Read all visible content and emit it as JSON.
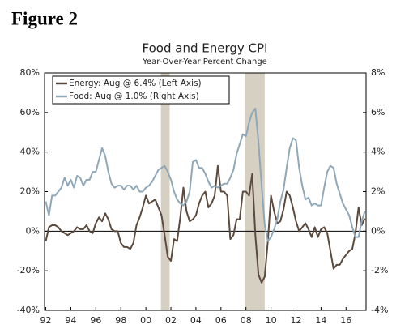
{
  "figure_label": "Figure 2",
  "chart_data": {
    "type": "line",
    "title": "Food and Energy CPI",
    "subtitle": "Year-Over-Year Percent Change",
    "xlim": [
      1991.9,
      2017.6
    ],
    "xticks": [
      {
        "value": 1992,
        "label": "92"
      },
      {
        "value": 1994,
        "label": "94"
      },
      {
        "value": 1996,
        "label": "96"
      },
      {
        "value": 1998,
        "label": "98"
      },
      {
        "value": 2000,
        "label": "00"
      },
      {
        "value": 2002,
        "label": "02"
      },
      {
        "value": 2004,
        "label": "04"
      },
      {
        "value": 2006,
        "label": "06"
      },
      {
        "value": 2008,
        "label": "08"
      },
      {
        "value": 2010,
        "label": "10"
      },
      {
        "value": 2012,
        "label": "12"
      },
      {
        "value": 2014,
        "label": "14"
      },
      {
        "value": 2016,
        "label": "16"
      }
    ],
    "ylim": [
      -40,
      80
    ],
    "yticks": [
      {
        "value": -40,
        "label": "-40%"
      },
      {
        "value": -20,
        "label": "-20%"
      },
      {
        "value": 0,
        "label": "0%"
      },
      {
        "value": 20,
        "label": "20%"
      },
      {
        "value": 40,
        "label": "40%"
      },
      {
        "value": 60,
        "label": "60%"
      },
      {
        "value": 80,
        "label": "80%"
      }
    ],
    "y2lim": [
      -4,
      8
    ],
    "y2ticks": [
      {
        "value": -4,
        "label": "-4%"
      },
      {
        "value": -2,
        "label": "-2%"
      },
      {
        "value": 0,
        "label": "0%"
      },
      {
        "value": 2,
        "label": "2%"
      },
      {
        "value": 4,
        "label": "4%"
      },
      {
        "value": 6,
        "label": "6%"
      },
      {
        "value": 8,
        "label": "8%"
      }
    ],
    "recessions": [
      [
        2001.2,
        2001.9
      ],
      [
        2007.9,
        2009.5
      ]
    ],
    "recession_color": "#d6d0c2",
    "legend": "upper left",
    "x": [
      1992,
      1992.25,
      1992.5,
      1992.75,
      1993,
      1993.25,
      1993.5,
      1993.75,
      1994,
      1994.25,
      1994.5,
      1994.75,
      1995,
      1995.25,
      1995.5,
      1995.75,
      1996,
      1996.25,
      1996.5,
      1996.75,
      1997,
      1997.25,
      1997.5,
      1997.75,
      1998,
      1998.25,
      1998.5,
      1998.75,
      1999,
      1999.25,
      1999.5,
      1999.75,
      2000,
      2000.25,
      2000.5,
      2000.75,
      2001,
      2001.25,
      2001.5,
      2001.75,
      2002,
      2002.25,
      2002.5,
      2002.75,
      2003,
      2003.25,
      2003.5,
      2003.75,
      2004,
      2004.25,
      2004.5,
      2004.75,
      2005,
      2005.25,
      2005.5,
      2005.75,
      2006,
      2006.25,
      2006.5,
      2006.75,
      2007,
      2007.25,
      2007.5,
      2007.75,
      2008,
      2008.25,
      2008.5,
      2008.75,
      2009,
      2009.25,
      2009.5,
      2009.75,
      2010,
      2010.25,
      2010.5,
      2010.75,
      2011,
      2011.25,
      2011.5,
      2011.75,
      2012,
      2012.25,
      2012.5,
      2012.75,
      2013,
      2013.25,
      2013.5,
      2013.75,
      2014,
      2014.25,
      2014.5,
      2014.75,
      2015,
      2015.25,
      2015.5,
      2015.75,
      2016,
      2016.25,
      2016.5,
      2016.75,
      2017,
      2017.25,
      2017.5
    ],
    "series": [
      {
        "name": "Energy: Aug @ 6.4% (Left Axis)",
        "color": "#5b4a3d",
        "axis": "y",
        "values": [
          -5,
          2,
          3,
          3,
          2,
          0,
          -1,
          -2,
          -1,
          0,
          2,
          1,
          1,
          3,
          0,
          -1,
          4,
          7,
          5,
          9,
          6,
          1,
          0,
          0,
          -6,
          -8,
          -8,
          -9,
          -6,
          3,
          7,
          12,
          18,
          14,
          15,
          16,
          12,
          8,
          -2,
          -13,
          -15,
          -4,
          -5,
          7,
          22,
          10,
          5,
          6,
          8,
          14,
          18,
          20,
          12,
          14,
          18,
          33,
          20,
          20,
          18,
          -4,
          -2,
          6,
          6,
          20,
          20,
          18,
          29,
          -2,
          -22,
          -26,
          -23,
          -5,
          18,
          10,
          4,
          5,
          11,
          20,
          18,
          12,
          5,
          0,
          2,
          4,
          1,
          -3,
          2,
          -3,
          1,
          2,
          -1,
          -10,
          -19,
          -17,
          -17,
          -14,
          -12,
          -10,
          -9,
          -1,
          12,
          3,
          6.4
        ]
      },
      {
        "name": "Food: Aug @ 1.0% (Right Axis)",
        "color": "#8fa7b7",
        "axis": "y2",
        "values": [
          1.5,
          0.8,
          1.8,
          1.8,
          2.0,
          2.2,
          2.7,
          2.3,
          2.6,
          2.2,
          2.8,
          2.7,
          2.3,
          2.6,
          2.6,
          3.0,
          3.0,
          3.6,
          4.2,
          3.8,
          3.0,
          2.4,
          2.2,
          2.3,
          2.3,
          2.1,
          2.3,
          2.3,
          2.1,
          2.3,
          2.0,
          2.0,
          2.2,
          2.3,
          2.5,
          2.8,
          3.1,
          3.2,
          3.3,
          3.0,
          2.6,
          2.0,
          1.6,
          1.4,
          1.3,
          1.5,
          2.0,
          3.5,
          3.6,
          3.2,
          3.2,
          2.9,
          2.5,
          2.2,
          2.3,
          2.2,
          2.3,
          2.4,
          2.4,
          2.7,
          3.1,
          3.9,
          4.4,
          4.9,
          4.8,
          5.5,
          6.0,
          6.2,
          4.5,
          2.3,
          0.3,
          -0.5,
          -0.3,
          0.1,
          0.6,
          1.5,
          2.1,
          3.2,
          4.2,
          4.7,
          4.6,
          3.2,
          2.3,
          1.6,
          1.7,
          1.3,
          1.4,
          1.3,
          1.3,
          2.2,
          3.0,
          3.3,
          3.2,
          2.4,
          1.9,
          1.4,
          1.1,
          0.8,
          0.2,
          -0.3,
          -0.3,
          0.5,
          1.0
        ]
      }
    ]
  }
}
